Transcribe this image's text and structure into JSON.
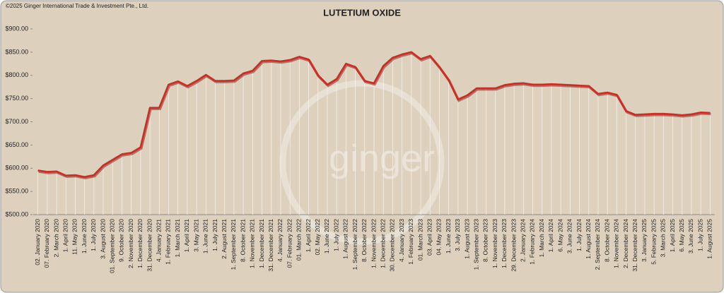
{
  "chart_data": {
    "type": "line",
    "title": "LUTETIUM OXIDE",
    "copyright": "©2025 Ginger International Trade & Investment Pte., Ltd.",
    "watermark": "ginger",
    "color": "#d42a22",
    "categories": [
      "02. January 2020",
      "07. February 2020",
      "2. March 2020",
      "1. April 2020",
      "11. May 2020",
      "1. June 2020",
      "1. July 2020",
      "3. August 2020",
      "01. September 2020",
      "9. October 2020",
      "2. November 2020",
      "1. December 2020",
      "31. December 2020",
      "4. January 2021",
      "1. February 2021",
      "1. March 2021",
      "1. April 2021",
      "3. May 2021",
      "1. June 2021",
      "1. July 2021",
      "2. August 2021",
      "1. September 2021",
      "8. October 2021",
      "1. November 2021",
      "1. December 2021",
      "31. December 2021",
      "4. January 2022",
      "07. February 2022",
      "01. March 2022",
      "1. April 2022",
      "02. May 2022",
      "1. June 2022",
      "1. July 2022",
      "1. August 2022",
      "1. September 2022",
      "8. October 2022",
      "1. November 2022",
      "1. December 2022",
      "30. December 2022",
      "4. January 2023",
      "1. February 2023",
      "01. March 2023",
      "03. April 2023",
      "04. May 2023",
      "1. June 2023",
      "3. July 2023",
      "1. August 2023",
      "1. September 2023",
      "8. October 2023",
      "1. November 2023",
      "1. December 2023",
      "29. December 2023",
      "2. January 2024",
      "1. February 2024",
      "1. March 2024",
      "1. April 2024",
      "6. May 2024",
      "3. June 2024",
      "1. July 2024",
      "1. August 2024",
      "2. September 2024",
      "8. October 2024",
      "1. November 2024",
      "2. December 2024",
      "31. December 2024",
      "3. January 2025",
      "5. February 2025",
      "3. March 2025",
      "1. April 2025",
      "6. May 2025",
      "3. June 2025",
      "1. July 2025",
      "1. August 2025"
    ],
    "values": [
      595,
      592,
      593,
      584,
      585,
      581,
      585,
      606,
      618,
      630,
      633,
      645,
      730,
      730,
      780,
      787,
      777,
      788,
      801,
      788,
      788,
      789,
      804,
      810,
      831,
      832,
      830,
      833,
      840,
      834,
      800,
      780,
      792,
      825,
      818,
      788,
      783,
      820,
      838,
      845,
      850,
      835,
      842,
      818,
      790,
      748,
      757,
      772,
      772,
      772,
      779,
      782,
      783,
      780,
      780,
      781,
      780,
      779,
      778,
      777,
      760,
      763,
      758,
      723,
      715,
      716,
      717,
      717,
      716,
      714,
      716,
      720,
      719
    ],
    "ylim": [
      500,
      900
    ],
    "yticks": [
      {
        "value": 500,
        "label": "$500.00"
      },
      {
        "value": 550,
        "label": "$550.00"
      },
      {
        "value": 600,
        "label": "$600.00"
      },
      {
        "value": 650,
        "label": "$650.00"
      },
      {
        "value": 700,
        "label": "$700.00"
      },
      {
        "value": 750,
        "label": "$750.00"
      },
      {
        "value": 800,
        "label": "$800.00"
      },
      {
        "value": 850,
        "label": "$850.00"
      },
      {
        "value": 900,
        "label": "$900.00"
      }
    ],
    "drop_lines": true
  }
}
